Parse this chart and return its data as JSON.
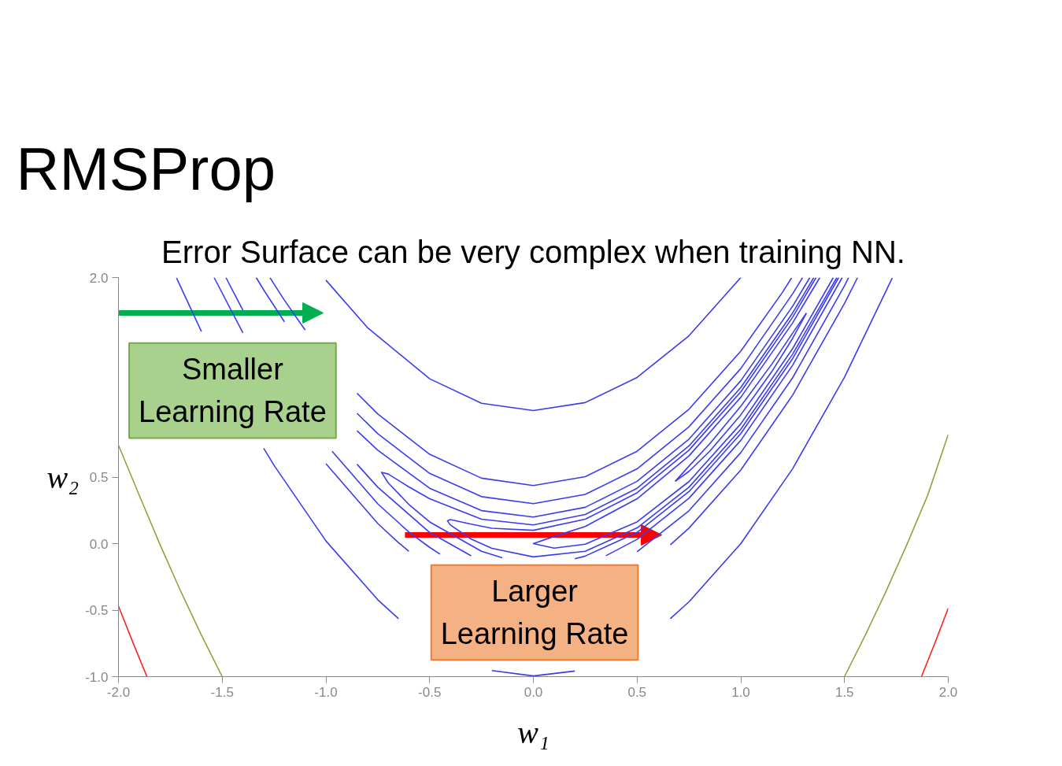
{
  "chart_data": {
    "type": "line",
    "title": "RMSProp",
    "subtitle": "Error Surface can be very complex when training NN.",
    "xlabel": "w₁",
    "ylabel": "w₂",
    "xlim": [
      -2,
      2
    ],
    "ylim": [
      -1,
      2
    ],
    "xticks": [
      {
        "value": -2,
        "label": "-2.0"
      },
      {
        "value": -1.5,
        "label": "-1.5"
      },
      {
        "value": -1,
        "label": "-1.0"
      },
      {
        "value": -0.5,
        "label": "-0.5"
      },
      {
        "value": 0,
        "label": "0.0"
      },
      {
        "value": 0.5,
        "label": "0.5"
      },
      {
        "value": 1,
        "label": "1.0"
      },
      {
        "value": 1.5,
        "label": "1.5"
      },
      {
        "value": 2,
        "label": "2.0"
      }
    ],
    "yticks": [
      {
        "value": -1,
        "label": "-1.0"
      },
      {
        "value": -0.5,
        "label": "-0.5"
      },
      {
        "value": 0,
        "label": "0.0"
      },
      {
        "value": 0.5,
        "label": "0.5"
      },
      {
        "value": 2,
        "label": "2.0"
      }
    ],
    "annotations": [
      "Smaller Learning Rate",
      "Larger Learning Rate"
    ],
    "series": [
      {
        "color": "#3b3bf0",
        "x": [
          -1.0,
          -0.8,
          -0.5,
          -0.25,
          0,
          0.25,
          0.5,
          0.75,
          1.0
        ],
        "values": [
          1.98,
          1.624,
          1.239,
          1.055,
          1.0,
          1.06,
          1.249,
          1.562,
          2.0
        ]
      },
      {
        "color": "#3b3bf0",
        "x": [
          -1.72,
          -1.6
        ],
        "values": [
          1.996,
          1.594
        ]
      },
      {
        "color": "#3b3bf0",
        "x": [
          -1.3,
          -1.25,
          -1.0,
          -0.75,
          -0.65
        ],
        "values": [
          0.717,
          0.588,
          0.02,
          -0.422,
          -0.564
        ]
      },
      {
        "color": "#3b3bf0",
        "x": [
          -0.2,
          0,
          0.2
        ],
        "values": [
          -0.954,
          -0.995,
          -0.958
        ]
      },
      {
        "color": "#3b3bf0",
        "x": [
          0.66,
          0.75,
          1.0,
          1.25,
          1.5,
          1.73
        ],
        "values": [
          -0.564,
          -0.438,
          0,
          0.563,
          1.251,
          1.996
        ]
      },
      {
        "color": "#3b3bf0",
        "x": [
          -1.27,
          -1.2,
          -1.1
        ],
        "values": [
          1.999,
          1.829,
          1.605
        ]
      },
      {
        "color": "#3b3bf0",
        "x": [
          -0.85,
          -0.75,
          -0.5,
          -0.25,
          0,
          0.25,
          0.5,
          0.75,
          1.0,
          1.2,
          1.245
        ],
        "values": [
          1.13,
          0.974,
          0.671,
          0.492,
          0.436,
          0.503,
          0.694,
          1.01,
          1.447,
          1.887,
          1.997
        ]
      },
      {
        "color": "#3b3bf0",
        "x": [
          -1.539,
          -1.4
        ],
        "values": [
          2.0,
          1.583
        ]
      },
      {
        "color": "#3b3bf0",
        "x": [
          -1.0,
          -0.75,
          -0.65,
          -0.6
        ],
        "values": [
          0.6,
          0.151,
          0.007,
          -0.058
        ]
      },
      {
        "color": "#3b3bf0",
        "x": [
          0.66,
          0.75,
          1.0,
          1.25,
          1.5,
          1.563
        ],
        "values": [
          -0.01,
          0.116,
          0.553,
          1.116,
          1.806,
          2.0
        ]
      },
      {
        "color": "#3b3bf0",
        "x": [
          -1.336,
          -1.3,
          -1.2
        ],
        "values": [
          2.0,
          1.907,
          1.667
        ]
      },
      {
        "color": "#3b3bf0",
        "x": [
          -0.85,
          -0.75,
          -0.5,
          -0.25,
          0,
          0.25,
          0.5,
          0.75,
          1.0,
          1.25,
          1.298
        ],
        "values": [
          0.979,
          0.826,
          0.528,
          0.353,
          0.3,
          0.37,
          0.562,
          0.878,
          1.316,
          1.878,
          2.0
        ]
      },
      {
        "color": "#3b3bf0",
        "x": [
          -1.482,
          -1.45,
          -1.4
        ],
        "values": [
          2.0,
          1.903,
          1.754
        ]
      },
      {
        "color": "#3b3bf0",
        "x": [
          -0.97,
          -0.75,
          -0.6,
          -0.5,
          -0.45
        ],
        "values": [
          0.694,
          0.299,
          0.087,
          -0.028,
          -0.079
        ]
      },
      {
        "color": "#3b3bf0",
        "x": [
          0.5,
          0.75,
          1.0,
          1.25,
          1.5,
          1.52
        ],
        "values": [
          -0.062,
          0.247,
          0.684,
          1.247,
          1.938,
          2.0
        ]
      },
      {
        "color": "#3b3bf0",
        "x": [
          -0.85,
          -0.75,
          -0.5,
          -0.25,
          0,
          0.25,
          0.5,
          0.75,
          1.0,
          1.25,
          1.333
        ],
        "values": [
          0.848,
          0.702,
          0.416,
          0.248,
          0.2,
          0.273,
          0.468,
          0.785,
          1.224,
          1.785,
          2.0
        ]
      },
      {
        "color": "#3b3bf0",
        "x": [
          -0.85,
          -0.75,
          -0.5,
          -0.3
        ],
        "values": [
          0.597,
          0.424,
          0.084,
          -0.092
        ]
      },
      {
        "color": "#3b3bf0",
        "x": [
          0.35,
          0.5,
          0.75,
          1.0,
          1.25,
          1.489
        ],
        "values": [
          -0.091,
          0.032,
          0.341,
          0.776,
          1.341,
          2.0
        ]
      },
      {
        "color": "#3b3bf0",
        "x": [
          1.352,
          1.25,
          1.0,
          0.75,
          0.5,
          0.25,
          0,
          -0.25,
          -0.5,
          -0.6,
          -0.7,
          -0.732,
          -0.7,
          -0.6,
          -0.5,
          -0.25,
          -0.15
        ],
        "values": [
          2.0,
          1.734,
          1.173,
          0.734,
          0.416,
          0.219,
          0.141,
          0.183,
          0.337,
          0.426,
          0.523,
          0.536,
          0.457,
          0.294,
          0.163,
          -0.058,
          -0.107
        ]
      },
      {
        "color": "#3b3bf0",
        "x": [
          0.2,
          0.25,
          0.5,
          0.75,
          1.0,
          1.25,
          1.472
        ],
        "values": [
          -0.114,
          -0.094,
          0.084,
          0.391,
          0.827,
          1.391,
          2.0
        ]
      },
      {
        "color": "#3b3bf0",
        "x": [
          1.363,
          1.25,
          1.0,
          0.75,
          0.5,
          0.25,
          0,
          -0.2,
          -0.3,
          -0.4,
          -0.414,
          -0.4,
          -0.3,
          -0.2,
          0,
          0.25,
          0.5,
          0.75,
          1.0,
          1.25,
          1.463
        ],
        "values": [
          2.0,
          1.702,
          1.141,
          0.702,
          0.382,
          0.183,
          0.1,
          0.115,
          0.146,
          0.18,
          0.171,
          0.14,
          0.034,
          -0.035,
          -0.1,
          -0.058,
          0.118,
          0.424,
          0.859,
          1.424,
          2.0
        ]
      },
      {
        "color": "#3b3bf0",
        "x": [
          1.381,
          1.25,
          1.0,
          0.75,
          0.5,
          0.25,
          0.1,
          0,
          0.1,
          0.25,
          0.5,
          0.75,
          1.0,
          1.25,
          1.446
        ],
        "values": [
          2.0,
          1.659,
          1.1,
          0.659,
          0.337,
          0.129,
          0.054,
          0,
          -0.034,
          -0.004,
          0.163,
          0.466,
          0.9,
          1.466,
          2.0
        ]
      },
      {
        "color": "#3b3bf0",
        "x": [
          0.684,
          0.75,
          0.85,
          1.0,
          1.15,
          1.25,
          1.316
        ],
        "values": [
          0.468,
          0.582,
          0.75,
          1.032,
          1.35,
          1.582,
          1.732
        ]
      },
      {
        "color": "#3b3bf0",
        "x": [
          0.684,
          0.75,
          0.85,
          1.0,
          1.15,
          1.25,
          1.316
        ],
        "values": [
          0.468,
          0.543,
          0.694,
          0.968,
          1.294,
          1.543,
          1.732
        ]
      },
      {
        "color": "#9c9c3c",
        "x": [
          -2.0,
          -1.9,
          -1.8,
          -1.7,
          -1.6,
          -1.5
        ],
        "values": [
          0.74,
          0.364,
          -0.007,
          -0.358,
          -0.689,
          -1.0
        ]
      },
      {
        "color": "#9c9c3c",
        "x": [
          1.5,
          1.6,
          1.7,
          1.8,
          1.9,
          2.0
        ],
        "values": [
          -1.0,
          -0.689,
          -0.359,
          -0.01,
          0.36,
          0.82
        ]
      },
      {
        "color": "#ff2020",
        "x": [
          -2.0,
          -1.93,
          -1.863
        ],
        "values": [
          -0.47,
          -0.745,
          -1.0
        ]
      },
      {
        "color": "#ff2020",
        "x": [
          1.871,
          1.935,
          2.0
        ],
        "values": [
          -1.0,
          -0.75,
          -0.485
        ]
      }
    ]
  }
}
